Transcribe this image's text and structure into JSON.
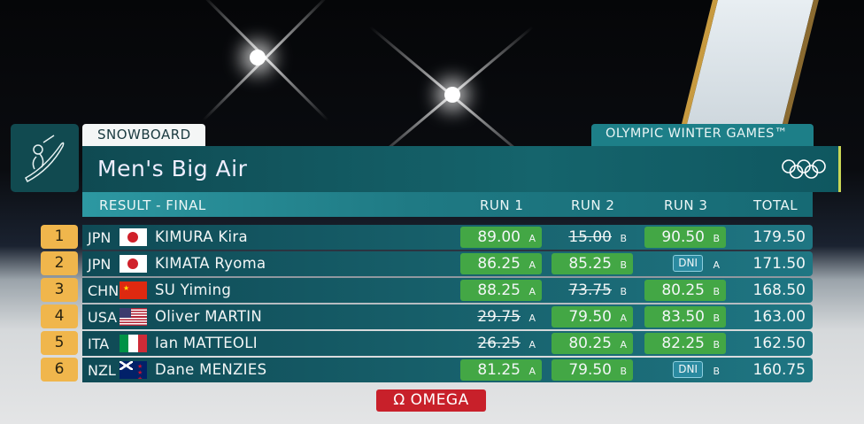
{
  "header": {
    "sport": "SNOWBOARD",
    "games": "OLYMPIC WINTER GAMES™",
    "event": "Men's Big Air",
    "phase": "RESULT - FINAL",
    "icons": {
      "pictogram": "snowboard-pictogram-icon",
      "rings": "olympic-rings-icon"
    }
  },
  "columns": {
    "run1": "RUN 1",
    "run2": "RUN 2",
    "run3": "RUN 3",
    "total": "TOTAL"
  },
  "rows": [
    {
      "rank": "1",
      "noc": "JPN",
      "name": "KIMURA Kira",
      "runs": [
        {
          "v": "89.00",
          "j": "A",
          "s": "counted"
        },
        {
          "v": "15.00",
          "j": "B",
          "s": "dropped"
        },
        {
          "v": "90.50",
          "j": "B",
          "s": "counted"
        }
      ],
      "total": "179.50"
    },
    {
      "rank": "2",
      "noc": "JPN",
      "name": "KIMATA Ryoma",
      "runs": [
        {
          "v": "86.25",
          "j": "A",
          "s": "counted"
        },
        {
          "v": "85.25",
          "j": "B",
          "s": "counted"
        },
        {
          "v": "DNI",
          "j": "A",
          "s": "dni"
        }
      ],
      "total": "171.50"
    },
    {
      "rank": "3",
      "noc": "CHN",
      "name": "SU Yiming",
      "runs": [
        {
          "v": "88.25",
          "j": "A",
          "s": "counted"
        },
        {
          "v": "73.75",
          "j": "B",
          "s": "dropped"
        },
        {
          "v": "80.25",
          "j": "B",
          "s": "counted"
        }
      ],
      "total": "168.50"
    },
    {
      "rank": "4",
      "noc": "USA",
      "name": "Oliver MARTIN",
      "runs": [
        {
          "v": "29.75",
          "j": "A",
          "s": "dropped"
        },
        {
          "v": "79.50",
          "j": "A",
          "s": "counted"
        },
        {
          "v": "83.50",
          "j": "B",
          "s": "counted"
        }
      ],
      "total": "163.00"
    },
    {
      "rank": "5",
      "noc": "ITA",
      "name": "Ian MATTEOLI",
      "runs": [
        {
          "v": "26.25",
          "j": "A",
          "s": "dropped"
        },
        {
          "v": "80.25",
          "j": "A",
          "s": "counted"
        },
        {
          "v": "82.25",
          "j": "B",
          "s": "counted"
        }
      ],
      "total": "162.50"
    },
    {
      "rank": "6",
      "noc": "NZL",
      "name": "Dane MENZIES",
      "runs": [
        {
          "v": "81.25",
          "j": "A",
          "s": "counted"
        },
        {
          "v": "79.50",
          "j": "B",
          "s": "counted"
        },
        {
          "v": "DNI",
          "j": "B",
          "s": "dni"
        }
      ],
      "total": "160.75"
    }
  ],
  "sponsor": "Ω OMEGA",
  "colors": {
    "counted": "#43a745",
    "rank": "#f0b64c",
    "omega": "#c8202a",
    "teal": "#1d7f88"
  }
}
